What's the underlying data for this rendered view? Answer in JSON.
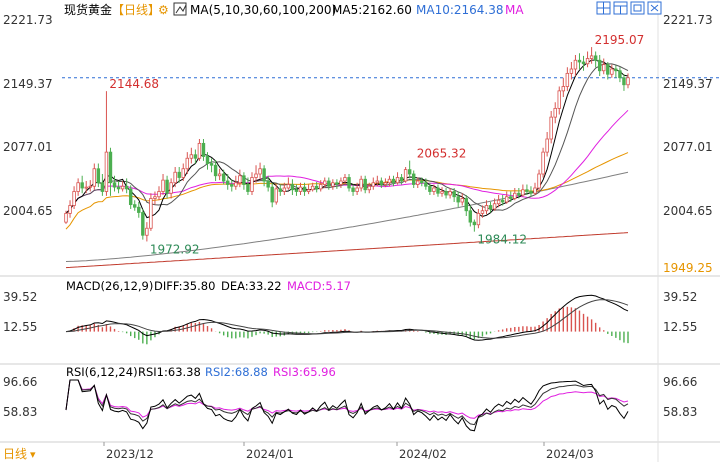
{
  "header": {
    "symbol": "现货黄金",
    "period": "【日线】",
    "ma_label": "MA(5,10,30,60,100,200)",
    "ma5_label": "MA5:2162.60",
    "ma10_label": "MA10:2164.38",
    "ma_more": "MA"
  },
  "toolbar": {
    "icons": [
      "layout-grid-icon",
      "chart-layout-icon",
      "window-icon",
      "close-icon"
    ]
  },
  "macd": {
    "label": "MACD(26,12,9)",
    "diff": "DIFF:35.80",
    "dea": "DEA:33.22",
    "macd": "MACD:5.17"
  },
  "rsi": {
    "label": "RSI(6,12,24)",
    "rsi1": "RSI1:63.38",
    "rsi2": "RSI2:68.88",
    "rsi3": "RSI3:65.96"
  },
  "footer": {
    "period": "日线"
  },
  "colors": {
    "up": "#d9534f",
    "down": "#4caf50",
    "text_up": "#d32f2f",
    "text_down": "#2e8b57",
    "ma5": "#000000",
    "ma10": "#555555",
    "ma30": "#e020e0",
    "ma60": "#e69500",
    "ma100": "#808080",
    "ma200": "#c0392b",
    "dashed_line": "#2f6fd6"
  },
  "chart_data": {
    "type": "candlestick",
    "axis_labels": {
      "price_left": [
        "2221.73",
        "2149.37",
        "2077.01",
        "2004.65"
      ],
      "price_right": [
        "2221.73",
        "2149.37",
        "2077.01",
        "2004.65",
        "1949.25"
      ],
      "macd": [
        "39.52",
        "12.55"
      ],
      "rsi": [
        "96.66",
        "58.83"
      ],
      "dates": [
        "2023/12",
        "2024/01",
        "2024/02",
        "2024/03"
      ]
    },
    "price_range": [
      1938,
      2226
    ],
    "annotations": [
      {
        "text": "2144.68",
        "value": 2144.68,
        "index": 10
      },
      {
        "text": "1972.92",
        "value": 1972.92,
        "index": 20
      },
      {
        "text": "2065.32",
        "value": 2065.32,
        "index": 86
      },
      {
        "text": "1984.12",
        "value": 1984.12,
        "index": 101
      },
      {
        "text": "2195.07",
        "value": 2195.07,
        "index": 130
      }
    ],
    "current_price": 2160,
    "candles": [
      [
        1995,
        2005,
        2008,
        1993
      ],
      [
        2005,
        2014,
        2020,
        2000
      ],
      [
        2014,
        2030,
        2036,
        2010
      ],
      [
        2030,
        2040,
        2045,
        2025
      ],
      [
        2040,
        2034,
        2048,
        2028
      ],
      [
        2034,
        2035,
        2042,
        2028
      ],
      [
        2035,
        2036,
        2043,
        2030
      ],
      [
        2036,
        2056,
        2062,
        2032
      ],
      [
        2056,
        2040,
        2062,
        2035
      ],
      [
        2040,
        2030,
        2050,
        2025
      ],
      [
        2030,
        2075,
        2144.68,
        2025
      ],
      [
        2075,
        2040,
        2080,
        2025
      ],
      [
        2040,
        2035,
        2048,
        2030
      ],
      [
        2035,
        2033,
        2042,
        2028
      ],
      [
        2033,
        2036,
        2042,
        2030
      ],
      [
        2036,
        2033,
        2045,
        2028
      ],
      [
        2033,
        2015,
        2037,
        2010
      ],
      [
        2015,
        2012,
        2020,
        2008
      ],
      [
        2012,
        2006,
        2018,
        2000
      ],
      [
        2006,
        1980,
        2010,
        1975
      ],
      [
        1980,
        1988,
        1995,
        1972.92
      ],
      [
        1988,
        2022,
        2028,
        1985
      ],
      [
        2022,
        2024,
        2030,
        2015
      ],
      [
        2024,
        2030,
        2036,
        2020
      ],
      [
        2030,
        2043,
        2050,
        2026
      ],
      [
        2043,
        2028,
        2048,
        2022
      ],
      [
        2028,
        2040,
        2045,
        2022
      ],
      [
        2040,
        2052,
        2058,
        2035
      ],
      [
        2052,
        2046,
        2058,
        2040
      ],
      [
        2046,
        2056,
        2062,
        2042
      ],
      [
        2056,
        2068,
        2075,
        2050
      ],
      [
        2068,
        2072,
        2080,
        2062
      ],
      [
        2072,
        2068,
        2078,
        2062
      ],
      [
        2068,
        2085,
        2090,
        2065
      ],
      [
        2085,
        2070,
        2090,
        2065
      ],
      [
        2070,
        2062,
        2075,
        2055
      ],
      [
        2062,
        2060,
        2068,
        2052
      ],
      [
        2060,
        2048,
        2066,
        2042
      ],
      [
        2048,
        2050,
        2056,
        2043
      ],
      [
        2050,
        2042,
        2055,
        2038
      ],
      [
        2042,
        2038,
        2050,
        2032
      ],
      [
        2038,
        2036,
        2044,
        2030
      ],
      [
        2036,
        2040,
        2048,
        2032
      ],
      [
        2040,
        2048,
        2055,
        2035
      ],
      [
        2048,
        2038,
        2052,
        2032
      ],
      [
        2038,
        2030,
        2046,
        2026
      ],
      [
        2030,
        2046,
        2052,
        2026
      ],
      [
        2046,
        2050,
        2060,
        2040
      ],
      [
        2050,
        2056,
        2063,
        2044
      ],
      [
        2056,
        2042,
        2060,
        2036
      ],
      [
        2042,
        2035,
        2048,
        2030
      ],
      [
        2035,
        2018,
        2040,
        2012
      ],
      [
        2018,
        2033,
        2038,
        2015
      ],
      [
        2033,
        2030,
        2038,
        2025
      ],
      [
        2030,
        2034,
        2040,
        2026
      ],
      [
        2034,
        2038,
        2046,
        2032
      ],
      [
        2038,
        2032,
        2044,
        2026
      ],
      [
        2032,
        2030,
        2038,
        2025
      ],
      [
        2030,
        2035,
        2040,
        2026
      ],
      [
        2035,
        2030,
        2040,
        2025
      ],
      [
        2030,
        2032,
        2038,
        2027
      ],
      [
        2032,
        2036,
        2040,
        2030
      ],
      [
        2036,
        2033,
        2041,
        2029
      ],
      [
        2033,
        2038,
        2043,
        2030
      ],
      [
        2038,
        2042,
        2046,
        2034
      ],
      [
        2042,
        2036,
        2046,
        2032
      ],
      [
        2036,
        2040,
        2044,
        2032
      ],
      [
        2040,
        2038,
        2044,
        2033
      ],
      [
        2038,
        2042,
        2046,
        2034
      ],
      [
        2042,
        2046,
        2050,
        2038
      ],
      [
        2046,
        2034,
        2050,
        2030
      ],
      [
        2034,
        2030,
        2038,
        2025
      ],
      [
        2030,
        2034,
        2040,
        2026
      ],
      [
        2034,
        2044,
        2048,
        2030
      ],
      [
        2044,
        2032,
        2048,
        2028
      ],
      [
        2032,
        2036,
        2040,
        2028
      ],
      [
        2036,
        2040,
        2046,
        2032
      ],
      [
        2040,
        2042,
        2048,
        2036
      ],
      [
        2042,
        2038,
        2046,
        2034
      ],
      [
        2038,
        2040,
        2045,
        2035
      ],
      [
        2040,
        2044,
        2048,
        2036
      ],
      [
        2044,
        2040,
        2048,
        2036
      ],
      [
        2040,
        2046,
        2052,
        2038
      ],
      [
        2046,
        2042,
        2050,
        2038
      ],
      [
        2042,
        2055,
        2058,
        2040
      ],
      [
        2055,
        2050,
        2065.32,
        2045
      ],
      [
        2050,
        2038,
        2054,
        2034
      ],
      [
        2038,
        2042,
        2046,
        2034
      ],
      [
        2042,
        2040,
        2046,
        2036
      ],
      [
        2040,
        2036,
        2045,
        2032
      ],
      [
        2036,
        2030,
        2040,
        2026
      ],
      [
        2030,
        2034,
        2038,
        2026
      ],
      [
        2034,
        2028,
        2038,
        2024
      ],
      [
        2028,
        2030,
        2035,
        2024
      ],
      [
        2030,
        2026,
        2034,
        2022
      ],
      [
        2026,
        2030,
        2034,
        2022
      ],
      [
        2030,
        2024,
        2034,
        2018
      ],
      [
        2024,
        2018,
        2030,
        2012
      ],
      [
        2018,
        2022,
        2028,
        2014
      ],
      [
        2022,
        2008,
        2026,
        2002
      ],
      [
        2008,
        1995,
        2014,
        1990
      ],
      [
        1995,
        1992,
        1998,
        1984.12
      ],
      [
        1992,
        2005,
        2010,
        1988
      ],
      [
        2005,
        2008,
        2014,
        2000
      ],
      [
        2008,
        2014,
        2020,
        2004
      ],
      [
        2014,
        2010,
        2018,
        2006
      ],
      [
        2010,
        2016,
        2022,
        2008
      ],
      [
        2016,
        2020,
        2026,
        2012
      ],
      [
        2020,
        2018,
        2026,
        2014
      ],
      [
        2018,
        2024,
        2030,
        2016
      ],
      [
        2024,
        2022,
        2030,
        2018
      ],
      [
        2022,
        2028,
        2034,
        2020
      ],
      [
        2028,
        2026,
        2034,
        2022
      ],
      [
        2026,
        2032,
        2038,
        2024
      ],
      [
        2032,
        2030,
        2038,
        2026
      ],
      [
        2030,
        2028,
        2036,
        2024
      ],
      [
        2028,
        2034,
        2040,
        2026
      ],
      [
        2034,
        2050,
        2055,
        2030
      ],
      [
        2050,
        2075,
        2080,
        2046
      ],
      [
        2075,
        2090,
        2098,
        2070
      ],
      [
        2090,
        2115,
        2122,
        2085
      ],
      [
        2115,
        2125,
        2132,
        2108
      ],
      [
        2125,
        2145,
        2150,
        2118
      ],
      [
        2145,
        2150,
        2160,
        2138
      ],
      [
        2150,
        2165,
        2172,
        2145
      ],
      [
        2165,
        2170,
        2178,
        2158
      ],
      [
        2170,
        2180,
        2186,
        2162
      ],
      [
        2180,
        2178,
        2188,
        2170
      ],
      [
        2178,
        2176,
        2185,
        2168
      ],
      [
        2176,
        2182,
        2190,
        2172
      ],
      [
        2182,
        2185,
        2195.07,
        2176
      ],
      [
        2185,
        2180,
        2190,
        2172
      ],
      [
        2180,
        2168,
        2186,
        2162
      ],
      [
        2168,
        2175,
        2182,
        2164
      ],
      [
        2175,
        2164,
        2178,
        2158
      ],
      [
        2164,
        2170,
        2175,
        2160
      ],
      [
        2170,
        2168,
        2174,
        2160
      ],
      [
        2168,
        2160,
        2172,
        2155
      ],
      [
        2160,
        2152,
        2164,
        2145
      ],
      [
        2152,
        2160,
        2165,
        2148
      ]
    ]
  }
}
